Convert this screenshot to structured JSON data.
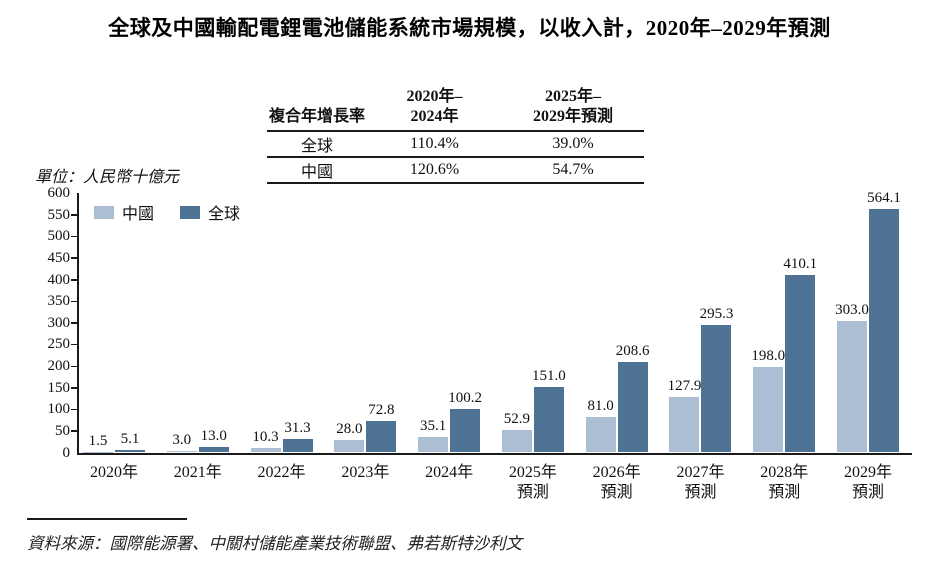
{
  "title": "全球及中國輸配電鋰電池儲能系統市場規模，以收入計，2020年–2029年預測",
  "cagr_table": {
    "corner_label": "複合年增長率",
    "col_headers": [
      [
        "2020年–",
        "2024年"
      ],
      [
        "2025年–",
        "2029年預測"
      ]
    ],
    "rows": [
      {
        "label": "全球",
        "values": [
          "110.4%",
          "39.0%"
        ]
      },
      {
        "label": "中國",
        "values": [
          "120.6%",
          "54.7%"
        ]
      }
    ]
  },
  "unit_label": "單位：人民幣十億元",
  "source": "資料來源：國際能源署、中關村儲能產業技術聯盟、弗若斯特沙利文",
  "colors": {
    "china_bar": "#abbed4",
    "global_bar": "#4d7294",
    "axis": "#1a1a1a"
  },
  "chart_data": {
    "type": "bar",
    "title": "全球及中國輸配電鋰電池儲能系統市場規模，以收入計，2020年–2029年預測",
    "categories": [
      "2020年",
      "2021年",
      "2022年",
      "2023年",
      "2024年",
      "2025年",
      "2026年",
      "2027年",
      "2028年",
      "2029年"
    ],
    "forecast_sublabel": "預測",
    "forecast_from_index": 5,
    "series": [
      {
        "name": "中國",
        "color": "#abbed4",
        "values": [
          1.5,
          3.0,
          10.3,
          28.0,
          35.1,
          52.9,
          81.0,
          127.9,
          198.0,
          303.0
        ]
      },
      {
        "name": "全球",
        "color": "#4d7294",
        "values": [
          5.1,
          13.0,
          31.3,
          72.8,
          100.2,
          151.0,
          208.6,
          295.3,
          410.1,
          564.1
        ]
      }
    ],
    "ylabel": "人民幣十億元",
    "ylim": [
      0,
      600
    ],
    "ytick_step": 50,
    "grid": false,
    "legend_position": "top-left",
    "value_labels": true
  }
}
